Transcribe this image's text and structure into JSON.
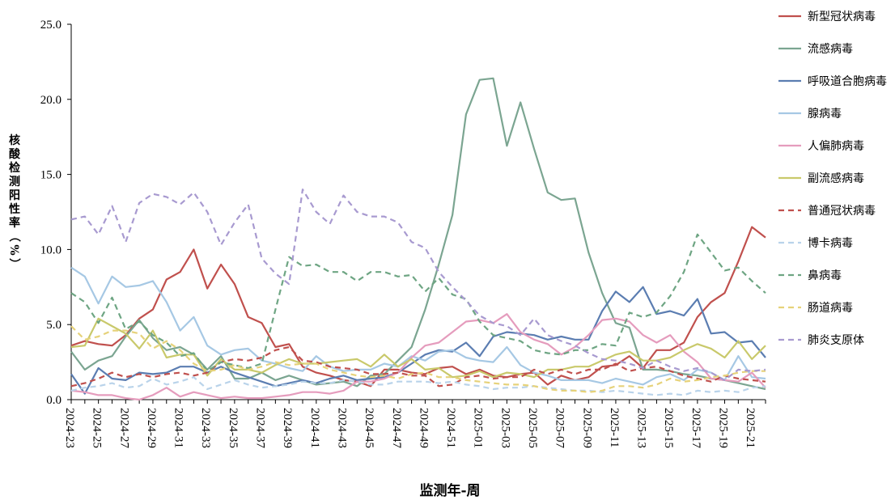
{
  "chart_data": {
    "type": "line",
    "title": "",
    "xlabel": "监测年-周",
    "ylabel": "核酸检测阳性率（%）",
    "ylim": [
      0,
      25
    ],
    "yticks": [
      "0.0",
      "5.0",
      "10.0",
      "15.0",
      "20.0",
      "25.0"
    ],
    "grid": false,
    "legend_position": "right",
    "x_tick_labels": [
      "2024-23",
      "2024-25",
      "2024-27",
      "2024-29",
      "2024-31",
      "2024-33",
      "2024-35",
      "2024-37",
      "2024-39",
      "2024-41",
      "2024-43",
      "2024-45",
      "2024-47",
      "2024-49",
      "2024-51",
      "2025-01",
      "2025-03",
      "2025-05",
      "2025-07",
      "2025-09",
      "2025-11",
      "2025-13",
      "2025-15",
      "2025-17",
      "2025-19",
      "2025-21"
    ],
    "categories": [
      "2024-23",
      "2024-24",
      "2024-25",
      "2024-26",
      "2024-27",
      "2024-28",
      "2024-29",
      "2024-30",
      "2024-31",
      "2024-32",
      "2024-33",
      "2024-34",
      "2024-35",
      "2024-36",
      "2024-37",
      "2024-38",
      "2024-39",
      "2024-40",
      "2024-41",
      "2024-42",
      "2024-43",
      "2024-44",
      "2024-45",
      "2024-46",
      "2024-47",
      "2024-48",
      "2024-49",
      "2024-50",
      "2024-51",
      "2024-52",
      "2025-01",
      "2025-02",
      "2025-03",
      "2025-04",
      "2025-05",
      "2025-06",
      "2025-07",
      "2025-08",
      "2025-09",
      "2025-10",
      "2025-11",
      "2025-12",
      "2025-13",
      "2025-14",
      "2025-15",
      "2025-16",
      "2025-17",
      "2025-18",
      "2025-19",
      "2025-20",
      "2025-21",
      "2025-22"
    ],
    "series": [
      {
        "name": "新型冠状病毒",
        "color": "#c0504d",
        "dash": false,
        "values": [
          3.6,
          3.9,
          3.7,
          3.6,
          4.3,
          5.4,
          6.0,
          8.0,
          8.5,
          10.0,
          7.4,
          9.0,
          7.7,
          5.5,
          5.1,
          3.5,
          3.7,
          2.2,
          1.8,
          1.6,
          1.3,
          1.2,
          0.9,
          2.0,
          2.0,
          1.8,
          1.7,
          2.1,
          2.2,
          1.7,
          2.0,
          1.6,
          1.5,
          1.7,
          1.8,
          1.0,
          1.6,
          1.3,
          1.5,
          2.2,
          2.3,
          2.9,
          2.1,
          3.3,
          3.3,
          3.8,
          5.5,
          6.5,
          7.1,
          9.2,
          11.5,
          10.8
        ]
      },
      {
        "name": "流感病毒",
        "color": "#7ba591",
        "dash": false,
        "values": [
          3.2,
          2.0,
          2.6,
          2.9,
          4.2,
          5.3,
          4.1,
          3.3,
          3.5,
          3.0,
          2.0,
          2.9,
          1.4,
          1.4,
          1.8,
          1.3,
          1.6,
          1.3,
          1.0,
          1.1,
          1.2,
          0.9,
          1.6,
          1.7,
          2.6,
          3.5,
          6.0,
          9.0,
          12.3,
          19.0,
          21.3,
          21.4,
          16.9,
          19.8,
          16.7,
          13.8,
          13.3,
          13.4,
          9.8,
          7.1,
          5.1,
          4.8,
          2.0,
          2.0,
          1.9,
          1.7,
          1.6,
          1.4,
          1.3,
          1.1,
          0.9,
          0.7
        ]
      },
      {
        "name": "呼吸道合胞病毒",
        "color": "#5b7db1",
        "dash": false,
        "values": [
          1.7,
          0.4,
          2.1,
          1.4,
          1.3,
          1.8,
          1.7,
          1.8,
          2.2,
          2.2,
          1.8,
          2.2,
          1.8,
          1.5,
          1.2,
          0.9,
          1.1,
          1.3,
          1.1,
          1.4,
          1.6,
          1.3,
          1.4,
          1.5,
          1.8,
          2.4,
          3.0,
          3.3,
          3.2,
          3.8,
          2.9,
          4.2,
          4.5,
          4.4,
          4.3,
          4.0,
          4.2,
          4.0,
          4.0,
          5.9,
          7.2,
          6.5,
          7.5,
          5.7,
          5.9,
          5.6,
          6.7,
          4.4,
          4.5,
          3.8,
          3.9,
          2.8
        ]
      },
      {
        "name": "腺病毒",
        "color": "#a6c8e4",
        "dash": false,
        "values": [
          8.8,
          8.2,
          6.4,
          8.2,
          7.5,
          7.6,
          7.9,
          6.5,
          4.6,
          5.5,
          3.6,
          3.0,
          3.3,
          3.4,
          2.6,
          2.4,
          2.1,
          1.9,
          2.9,
          2.2,
          1.9,
          2.0,
          2.0,
          2.4,
          2.2,
          2.9,
          2.6,
          3.2,
          3.3,
          2.8,
          2.6,
          2.5,
          3.5,
          2.3,
          1.8,
          1.6,
          1.3,
          1.3,
          1.3,
          1.1,
          1.4,
          1.2,
          1.0,
          1.5,
          1.7,
          1.3,
          2.0,
          1.8,
          1.3,
          2.9,
          1.5,
          1.4
        ]
      },
      {
        "name": "人偏肺病毒",
        "color": "#e59cbd",
        "dash": false,
        "values": [
          0.6,
          0.5,
          0.3,
          0.3,
          0.1,
          0.0,
          0.3,
          0.8,
          0.2,
          0.5,
          0.3,
          0.1,
          0.2,
          0.1,
          0.1,
          0.2,
          0.3,
          0.5,
          0.5,
          0.4,
          0.6,
          1.2,
          1.2,
          1.4,
          1.8,
          2.8,
          3.6,
          3.8,
          4.5,
          5.2,
          5.3,
          5.1,
          5.7,
          4.5,
          4.0,
          3.7,
          3.0,
          3.5,
          4.3,
          5.3,
          5.4,
          5.2,
          4.3,
          3.8,
          4.3,
          3.2,
          2.5,
          1.4,
          1.3,
          1.2,
          1.8,
          0.8
        ]
      },
      {
        "name": "副流感病毒",
        "color": "#c9c96b",
        "dash": false,
        "values": [
          3.5,
          3.6,
          5.4,
          4.9,
          4.4,
          3.4,
          4.6,
          2.8,
          3.0,
          3.0,
          1.6,
          2.7,
          2.0,
          2.0,
          1.8,
          2.3,
          2.7,
          2.4,
          2.4,
          2.5,
          2.6,
          2.7,
          2.2,
          3.0,
          2.2,
          2.7,
          2.0,
          2.1,
          1.5,
          1.6,
          1.9,
          1.5,
          1.8,
          1.7,
          1.5,
          2.0,
          2.0,
          2.2,
          2.2,
          2.6,
          3.0,
          3.2,
          2.6,
          2.6,
          2.8,
          3.3,
          3.7,
          3.4,
          2.8,
          3.9,
          2.7,
          3.6
        ]
      },
      {
        "name": "普通冠状病毒",
        "color": "#c0504d",
        "dash": true,
        "values": [
          0.9,
          1.1,
          1.4,
          1.8,
          1.5,
          1.7,
          1.5,
          1.7,
          1.8,
          1.6,
          1.8,
          2.5,
          2.7,
          2.6,
          2.8,
          3.3,
          3.5,
          2.6,
          2.5,
          2.2,
          2.1,
          2.0,
          1.7,
          1.7,
          1.8,
          1.6,
          1.6,
          0.9,
          1.0,
          1.5,
          1.6,
          1.4,
          1.5,
          1.5,
          2.0,
          1.7,
          2.0,
          1.7,
          2.0,
          2.0,
          2.4,
          1.9,
          2.1,
          2.2,
          1.9,
          1.6,
          1.4,
          1.2,
          1.6,
          1.4,
          1.3,
          1.2
        ]
      },
      {
        "name": "博卡病毒",
        "color": "#b9d3ea",
        "dash": true,
        "values": [
          0.6,
          0.8,
          0.9,
          1.1,
          0.8,
          0.9,
          1.4,
          1.0,
          1.2,
          1.5,
          0.7,
          1.0,
          1.3,
          1.0,
          0.8,
          0.9,
          1.0,
          1.2,
          1.1,
          1.1,
          1.3,
          1.2,
          1.0,
          1.0,
          1.2,
          1.2,
          1.2,
          1.1,
          1.2,
          1.0,
          0.9,
          0.7,
          0.8,
          0.8,
          0.9,
          0.8,
          0.7,
          0.6,
          0.6,
          0.5,
          0.6,
          0.5,
          0.4,
          0.3,
          0.4,
          0.3,
          0.6,
          0.5,
          0.6,
          0.5,
          0.8,
          0.9
        ]
      },
      {
        "name": "鼻病毒",
        "color": "#6ea583",
        "dash": true,
        "values": [
          7.1,
          6.5,
          5.1,
          6.8,
          4.7,
          5.2,
          4.3,
          3.8,
          2.9,
          3.1,
          1.9,
          2.5,
          2.3,
          2.1,
          2.4,
          6.0,
          9.5,
          8.9,
          9.0,
          8.5,
          8.5,
          7.9,
          8.5,
          8.5,
          8.2,
          8.3,
          7.2,
          8.1,
          7.0,
          6.7,
          5.2,
          4.3,
          4.1,
          3.9,
          3.3,
          3.1,
          3.0,
          3.3,
          3.3,
          3.7,
          3.6,
          5.8,
          5.5,
          5.8,
          6.9,
          8.5,
          11.0,
          9.8,
          8.6,
          8.8,
          7.9,
          7.1
        ]
      },
      {
        "name": "肠道病毒",
        "color": "#e6d27a",
        "dash": true,
        "values": [
          4.9,
          4.0,
          4.2,
          4.6,
          4.6,
          4.4,
          3.4,
          3.9,
          3.3,
          2.4,
          1.9,
          2.0,
          2.3,
          2.0,
          2.2,
          2.5,
          2.3,
          2.4,
          2.4,
          2.0,
          1.8,
          1.6,
          1.5,
          1.6,
          1.4,
          1.7,
          1.8,
          1.5,
          1.5,
          1.3,
          1.2,
          1.1,
          1.0,
          1.0,
          0.9,
          0.7,
          0.6,
          0.6,
          0.5,
          0.6,
          0.9,
          0.9,
          0.8,
          1.0,
          1.4,
          1.2,
          1.3,
          1.5,
          1.6,
          1.8,
          1.9,
          1.9
        ]
      },
      {
        "name": "肺炎支原体",
        "color": "#a89ad0",
        "dash": true,
        "values": [
          12.0,
          12.2,
          11.0,
          12.9,
          10.5,
          13.1,
          13.7,
          13.5,
          13.0,
          13.8,
          12.5,
          10.3,
          11.8,
          13.0,
          9.4,
          8.4,
          7.7,
          14.0,
          12.5,
          11.7,
          13.6,
          12.5,
          12.2,
          12.2,
          11.8,
          10.5,
          10.1,
          8.5,
          7.5,
          6.6,
          5.6,
          5.1,
          4.9,
          4.3,
          5.4,
          4.3,
          3.9,
          3.6,
          3.1,
          2.7,
          2.6,
          2.4,
          2.1,
          2.6,
          2.2,
          1.9,
          2.1,
          1.8,
          1.3,
          2.0,
          1.9,
          2.0
        ]
      }
    ]
  }
}
